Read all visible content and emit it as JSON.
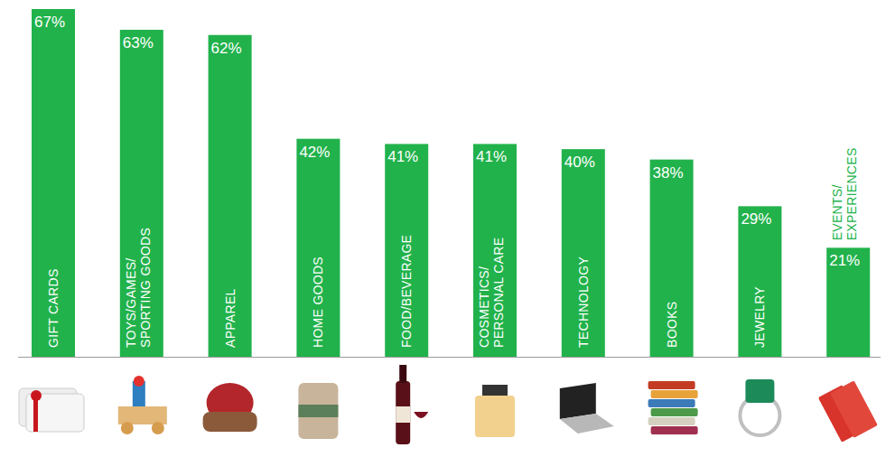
{
  "chart_data": {
    "type": "bar",
    "categories": [
      "GIFT CARDS",
      "TOYS/GAMES/SPORTING GOODS",
      "APPAREL",
      "HOME GOODS",
      "FOOD/BEVERAGE",
      "COSMETICS/PERSONAL CARE",
      "TECHNOLOGY",
      "BOOKS",
      "JEWELRY",
      "EVENTS/EXPERIENCES"
    ],
    "values": [
      67,
      63,
      62,
      42,
      41,
      41,
      40,
      38,
      29,
      21
    ],
    "value_labels": [
      "67%",
      "63%",
      "62%",
      "42%",
      "41%",
      "41%",
      "40%",
      "38%",
      "29%",
      "21%"
    ],
    "color": "#21b24b",
    "ylim": [
      0,
      67
    ],
    "data_labels": true,
    "tick_labels": "x",
    "grid": false
  }
}
